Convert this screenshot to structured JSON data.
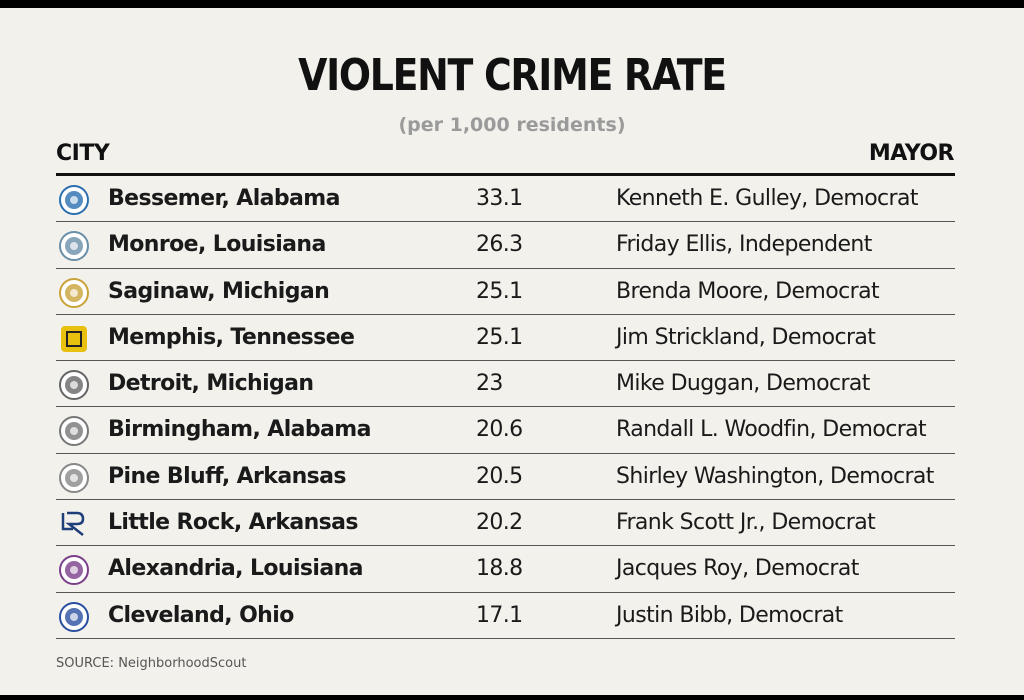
{
  "chart_data": {
    "type": "table",
    "title": "VIOLENT CRIME RATE",
    "subtitle": "(per 1,000 residents)",
    "columns": [
      "CITY",
      "MAYOR"
    ],
    "rows": [
      {
        "city": "Bessemer, Alabama",
        "rate": "33.1",
        "mayor": "Kenneth E. Gulley, Democrat",
        "seal": "bessemer-seal-icon"
      },
      {
        "city": "Monroe, Louisiana",
        "rate": "26.3",
        "mayor": "Friday Ellis, Independent",
        "seal": "monroe-seal-icon"
      },
      {
        "city": "Saginaw, Michigan",
        "rate": "25.1",
        "mayor": "Brenda Moore, Democrat",
        "seal": "saginaw-seal-icon"
      },
      {
        "city": "Memphis, Tennessee",
        "rate": "25.1",
        "mayor": "Jim Strickland, Democrat",
        "seal": "memphis-seal-icon"
      },
      {
        "city": "Detroit, Michigan",
        "rate": "23",
        "mayor": "Mike Duggan, Democrat",
        "seal": "detroit-seal-icon"
      },
      {
        "city": "Birmingham, Alabama",
        "rate": "20.6",
        "mayor": "Randall L. Woodfin, Democrat",
        "seal": "birmingham-seal-icon"
      },
      {
        "city": "Pine Bluff, Arkansas",
        "rate": "20.5",
        "mayor": "Shirley Washington, Democrat",
        "seal": "pine-bluff-seal-icon"
      },
      {
        "city": "Little Rock, Arkansas",
        "rate": "20.2",
        "mayor": "Frank Scott Jr., Democrat",
        "seal": "little-rock-logo-icon"
      },
      {
        "city": "Alexandria, Louisiana",
        "rate": "18.8",
        "mayor": "Jacques Roy, Democrat",
        "seal": "alexandria-seal-icon"
      },
      {
        "city": "Cleveland, Ohio",
        "rate": "17.1",
        "mayor": "Justin Bibb, Democrat",
        "seal": "cleveland-seal-icon"
      }
    ],
    "source": "SOURCE: NeighborhoodScout"
  },
  "colors": {
    "background": "#f3f1ec",
    "text": "#1a1a1a",
    "subtitle": "#9a9a9a"
  },
  "seal_colors": [
    "#2a6fb0",
    "#6a8fa8",
    "#c9a23a",
    "#e8c10f",
    "#666666",
    "#777777",
    "#888888",
    "#1f3f7a",
    "#7a3f8a",
    "#2a4fa0"
  ]
}
